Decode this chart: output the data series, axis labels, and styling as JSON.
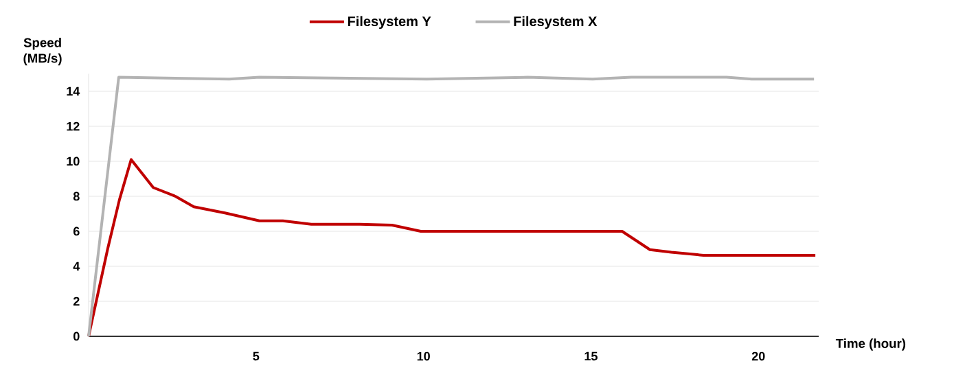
{
  "chart_data": {
    "type": "line",
    "xlabel": "Time (hour)",
    "ylabel": "Speed (MB/s)",
    "series": [
      {
        "name": "Filesystem Y",
        "color": "#c00000",
        "x": [
          0,
          0.57,
          0.92,
          1.27,
          1.93,
          2.59,
          3.14,
          4.07,
          5.1,
          5.8,
          6.65,
          8.1,
          9.06,
          9.92,
          15.93,
          16.76,
          17.4,
          18.36,
          21.7
        ],
        "values": [
          0,
          5.0,
          7.8,
          10.1,
          8.5,
          8.0,
          7.4,
          7.05,
          6.6,
          6.6,
          6.4,
          6.4,
          6.35,
          6.0,
          6.0,
          4.95,
          4.8,
          4.63,
          4.63
        ]
      },
      {
        "name": "Filesystem X",
        "color": "#b3b3b3",
        "x": [
          0,
          0.9,
          4.2,
          5.1,
          10.1,
          13.1,
          15.05,
          16.2,
          19.05,
          19.8,
          21.66
        ],
        "values": [
          0,
          14.8,
          14.7,
          14.8,
          14.7,
          14.8,
          14.7,
          14.8,
          14.8,
          14.7,
          14.7
        ]
      }
    ],
    "xlim": [
      0,
      21.8
    ],
    "ylim": [
      0,
      15
    ],
    "xticks": [
      5,
      10,
      15,
      20
    ],
    "yticks": [
      0,
      2,
      4,
      6,
      8,
      10,
      12,
      14
    ],
    "grid": "y",
    "legend": "top",
    "line_style": "solid"
  }
}
